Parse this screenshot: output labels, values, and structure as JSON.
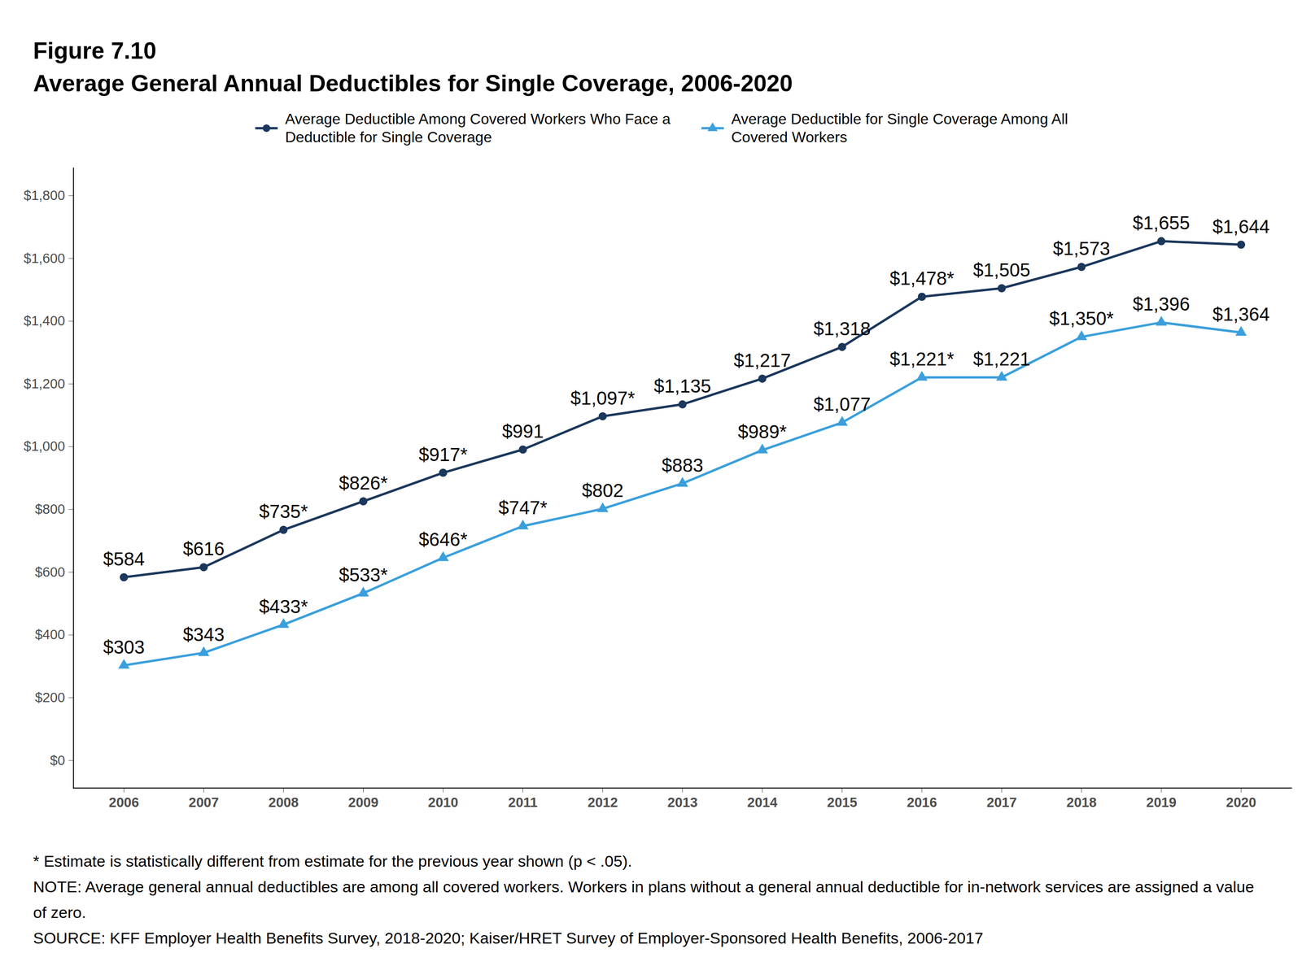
{
  "chart_data": {
    "type": "line",
    "title": "Figure 7.10",
    "subtitle": "Average General Annual Deductibles for Single Coverage, 2006-2020",
    "notes": [
      "* Estimate is statistically different from estimate for the previous year shown (p < .05).",
      "NOTE: Average general annual deductibles are among all covered workers. Workers in plans without a general annual deductible for in-network services are assigned a value of zero.",
      "SOURCE: KFF Employer Health Benefits Survey, 2018-2020; Kaiser/HRET Survey of Employer-Sponsored Health Benefits, 2006-2017"
    ],
    "categories": [
      "2006",
      "2007",
      "2008",
      "2009",
      "2010",
      "2011",
      "2012",
      "2013",
      "2014",
      "2015",
      "2016",
      "2017",
      "2018",
      "2019",
      "2020"
    ],
    "series": [
      {
        "name": "Average Deductible Among Covered Workers Who Face a Deductible for Single Coverage",
        "color": "#1b375b",
        "marker": "circle",
        "values": [
          584,
          616,
          735,
          826,
          917,
          991,
          1097,
          1135,
          1217,
          1318,
          1478,
          1505,
          1573,
          1655,
          1644
        ],
        "value_labels": [
          "$584",
          "$616",
          "$735*",
          "$826*",
          "$917*",
          "$991",
          "$1,097*",
          "$1,135",
          "$1,217",
          "$1,318",
          "$1,478*",
          "$1,505",
          "$1,573",
          "$1,655",
          "$1,644"
        ]
      },
      {
        "name": "Average Deductible for Single Coverage Among All Covered Workers",
        "color": "#3a9fdc",
        "marker": "triangle",
        "values": [
          303,
          343,
          433,
          533,
          646,
          747,
          802,
          883,
          989,
          1077,
          1221,
          1221,
          1350,
          1396,
          1364
        ],
        "value_labels": [
          "$303",
          "$343",
          "$433*",
          "$533*",
          "$646*",
          "$747*",
          "$802",
          "$883",
          "$989*",
          "$1,077",
          "$1,221*",
          "$1,221",
          "$1,350*",
          "$1,396",
          "$1,364"
        ]
      }
    ],
    "ylim": [
      -88,
      1888
    ],
    "yticks": [
      {
        "value": 0,
        "label": "$0"
      },
      {
        "value": 200,
        "label": "$200"
      },
      {
        "value": 400,
        "label": "$400"
      },
      {
        "value": 600,
        "label": "$600"
      },
      {
        "value": 800,
        "label": "$800"
      },
      {
        "value": 1000,
        "label": "$1,000"
      },
      {
        "value": 1200,
        "label": "$1,200"
      },
      {
        "value": 1400,
        "label": "$1,400"
      },
      {
        "value": 1600,
        "label": "$1,600"
      },
      {
        "value": 1800,
        "label": "$1,800"
      }
    ],
    "data_labels": true,
    "grid": false,
    "legend": "top"
  }
}
